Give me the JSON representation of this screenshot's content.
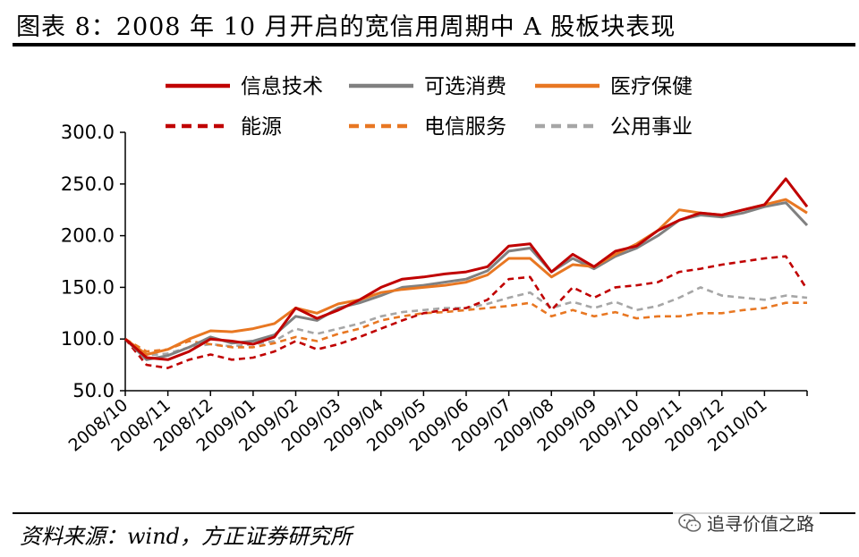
{
  "title": "图表 8：2008 年 10 月开启的宽信用周期中 A 股板块表现",
  "source": "资料来源：wind，方正证券研究所",
  "watermark": "追寻价值之路",
  "chart_data": {
    "type": "line",
    "title": "",
    "xlabel": "",
    "ylabel": "",
    "ylim": [
      50,
      300
    ],
    "yticks": [
      50,
      100,
      150,
      200,
      250,
      300
    ],
    "ytick_labels": [
      "50.0",
      "100.0",
      "150.0",
      "200.0",
      "250.0",
      "300.0"
    ],
    "xticks": [
      "2008/10",
      "2008/11",
      "2008/12",
      "2009/01",
      "2009/02",
      "2009/03",
      "2009/04",
      "2009/05",
      "2009/06",
      "2009/07",
      "2009/08",
      "2009/09",
      "2009/10",
      "2009/11",
      "2009/12",
      "2010/01"
    ],
    "x": [
      "2008/10",
      "2008/10b",
      "2008/11",
      "2008/11b",
      "2008/12",
      "2008/12b",
      "2009/01",
      "2009/01b",
      "2009/02",
      "2009/02b",
      "2009/03",
      "2009/03b",
      "2009/04",
      "2009/04b",
      "2009/05",
      "2009/05b",
      "2009/06",
      "2009/06b",
      "2009/07",
      "2009/07b",
      "2009/08",
      "2009/08b",
      "2009/09",
      "2009/09b",
      "2009/10",
      "2009/10b",
      "2009/11",
      "2009/11b",
      "2009/12",
      "2009/12b",
      "2010/01",
      "2010/01b",
      "2010/02"
    ],
    "grid": false,
    "legend_position": "top",
    "series": [
      {
        "name": "信息技术",
        "style": "solid",
        "color": "#C00000",
        "values": [
          100,
          82,
          80,
          88,
          100,
          98,
          95,
          102,
          130,
          120,
          128,
          138,
          150,
          158,
          160,
          163,
          165,
          170,
          190,
          192,
          165,
          182,
          170,
          185,
          190,
          205,
          215,
          222,
          220,
          225,
          230,
          255,
          228
        ]
      },
      {
        "name": "可选消费",
        "style": "solid",
        "color": "#808080",
        "values": [
          100,
          80,
          84,
          92,
          102,
          96,
          98,
          104,
          122,
          118,
          130,
          135,
          142,
          150,
          152,
          155,
          158,
          166,
          185,
          188,
          165,
          178,
          168,
          180,
          188,
          200,
          215,
          220,
          218,
          222,
          228,
          232,
          210
        ]
      },
      {
        "name": "医疗保健",
        "style": "solid",
        "color": "#E87722",
        "values": [
          100,
          85,
          90,
          100,
          108,
          107,
          110,
          115,
          130,
          125,
          134,
          138,
          145,
          148,
          150,
          152,
          155,
          162,
          178,
          178,
          160,
          172,
          170,
          182,
          192,
          205,
          225,
          222,
          220,
          225,
          230,
          235,
          222
        ]
      },
      {
        "name": "能源",
        "style": "dashed",
        "color": "#C00000",
        "values": [
          100,
          75,
          72,
          80,
          85,
          80,
          82,
          88,
          98,
          90,
          95,
          102,
          110,
          118,
          125,
          128,
          130,
          138,
          158,
          160,
          128,
          150,
          140,
          150,
          152,
          155,
          165,
          168,
          172,
          175,
          178,
          180,
          148
        ]
      },
      {
        "name": "电信服务",
        "style": "dashed",
        "color": "#E87722",
        "values": [
          100,
          88,
          90,
          98,
          95,
          92,
          92,
          96,
          102,
          98,
          105,
          110,
          118,
          122,
          125,
          126,
          128,
          130,
          132,
          135,
          122,
          128,
          122,
          126,
          120,
          122,
          122,
          125,
          125,
          128,
          130,
          135,
          135
        ]
      },
      {
        "name": "公用事业",
        "style": "dashed",
        "color": "#A6A6A6",
        "values": [
          100,
          84,
          86,
          92,
          95,
          93,
          95,
          98,
          110,
          105,
          110,
          115,
          122,
          126,
          128,
          130,
          130,
          134,
          140,
          145,
          130,
          136,
          130,
          136,
          128,
          132,
          140,
          150,
          142,
          140,
          138,
          142,
          140
        ]
      }
    ]
  }
}
